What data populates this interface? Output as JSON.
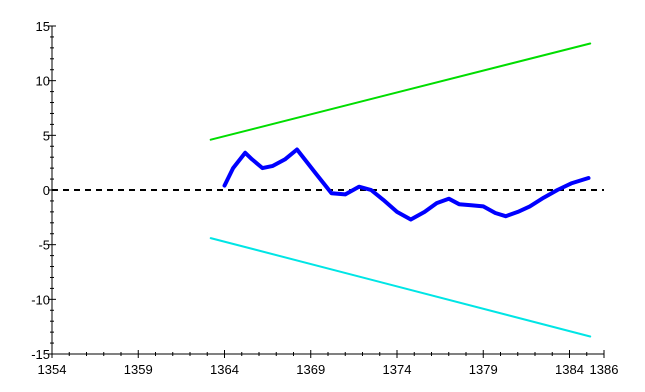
{
  "chart_data": {
    "type": "line",
    "title": "",
    "xlabel": "",
    "ylabel": "",
    "xlim": [
      1354,
      1386
    ],
    "ylim": [
      -15,
      15
    ],
    "x_ticks": [
      1354,
      1359,
      1364,
      1369,
      1374,
      1379,
      1384,
      1386
    ],
    "x_tick_labels": [
      "1354",
      "1359",
      "1364",
      "1369",
      "1374",
      "1379",
      "1384",
      "1386"
    ],
    "y_ticks": [
      15,
      10,
      5,
      0,
      -5,
      -10,
      -15
    ],
    "y_tick_labels": [
      "15",
      "10",
      "5",
      "0",
      "-5",
      "-10",
      "-15"
    ],
    "grid": false,
    "legend": "none",
    "zero_line": {
      "y": 0,
      "style": "dashed",
      "color": "#000000"
    },
    "series": [
      {
        "color": "#0000ff",
        "width": 4,
        "points": [
          [
            1364.0,
            0.4
          ],
          [
            1364.5,
            2.0
          ],
          [
            1365.2,
            3.4
          ],
          [
            1365.6,
            2.8
          ],
          [
            1366.2,
            2.0
          ],
          [
            1366.8,
            2.2
          ],
          [
            1367.5,
            2.8
          ],
          [
            1368.2,
            3.7
          ],
          [
            1369.3,
            1.5
          ],
          [
            1370.2,
            -0.3
          ],
          [
            1371.0,
            -0.4
          ],
          [
            1371.8,
            0.3
          ],
          [
            1372.5,
            0.0
          ],
          [
            1373.2,
            -0.9
          ],
          [
            1374.0,
            -2.0
          ],
          [
            1374.8,
            -2.7
          ],
          [
            1375.6,
            -2.0
          ],
          [
            1376.3,
            -1.2
          ],
          [
            1377.0,
            -0.8
          ],
          [
            1377.6,
            -1.3
          ],
          [
            1378.3,
            -1.4
          ],
          [
            1379.0,
            -1.5
          ],
          [
            1379.7,
            -2.1
          ],
          [
            1380.3,
            -2.4
          ],
          [
            1381.0,
            -2.0
          ],
          [
            1381.7,
            -1.5
          ],
          [
            1382.5,
            -0.7
          ],
          [
            1383.3,
            0.0
          ],
          [
            1384.1,
            0.6
          ],
          [
            1385.1,
            1.1
          ]
        ]
      },
      {
        "color": "#00dd00",
        "width": 2,
        "points": [
          [
            1363.2,
            4.6
          ],
          [
            1385.2,
            13.4
          ]
        ]
      },
      {
        "color": "#00e5e5",
        "width": 2,
        "points": [
          [
            1363.2,
            -4.4
          ],
          [
            1385.2,
            -13.4
          ]
        ]
      }
    ]
  }
}
